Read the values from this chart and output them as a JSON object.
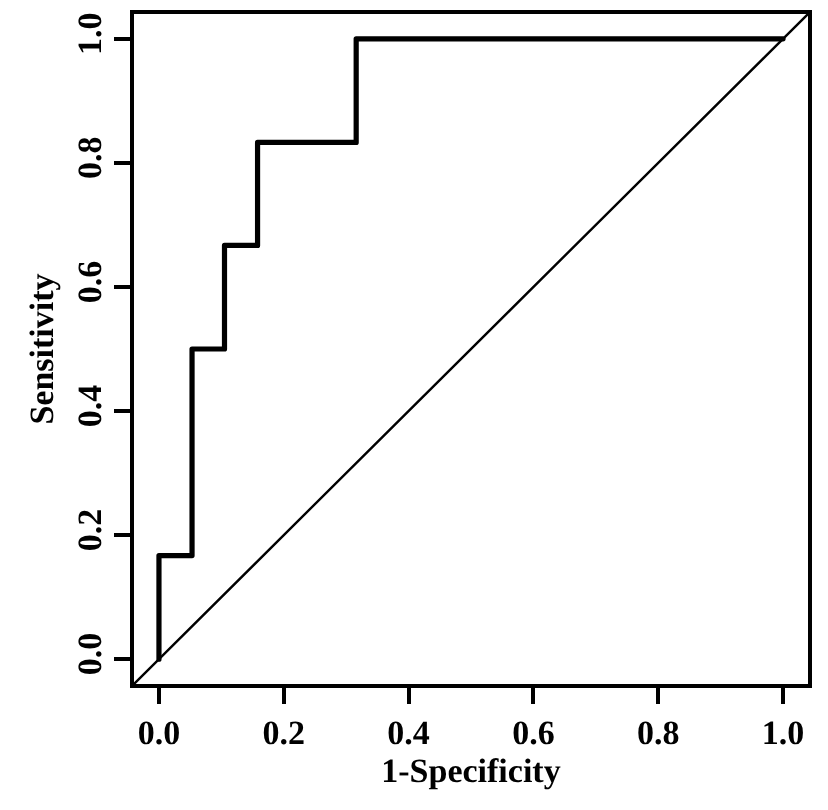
{
  "chart_data": {
    "type": "line",
    "xlabel": "1-Specificity",
    "ylabel": "Sensitivity",
    "series": [
      {
        "color": "#000000",
        "x": [
          0,
          0,
          0.053,
          0.053,
          0.105,
          0.105,
          0.158,
          0.158,
          0.316,
          0.316,
          1.0
        ],
        "values": [
          0,
          0.167,
          0.167,
          0.5,
          0.5,
          0.667,
          0.667,
          0.833,
          0.833,
          1.0,
          1.0
        ]
      },
      {
        "color": "#000000",
        "x": [
          -0.04,
          1.04
        ],
        "values": [
          -0.04,
          1.04
        ]
      }
    ],
    "xlim": [
      -0.04,
      1.04
    ],
    "ylim": [
      -0.04,
      1.04
    ],
    "xticks": [
      {
        "value": 0,
        "label": "0.0"
      },
      0.2,
      0.4,
      0.6,
      0.8,
      {
        "value": 1,
        "label": "1.0"
      }
    ],
    "yticks": [
      {
        "value": 0,
        "label": "0.0"
      },
      0.2,
      0.4,
      0.6,
      0.8,
      {
        "value": 1,
        "label": "1.0"
      }
    ],
    "marker": "none",
    "line_style": "solid"
  }
}
